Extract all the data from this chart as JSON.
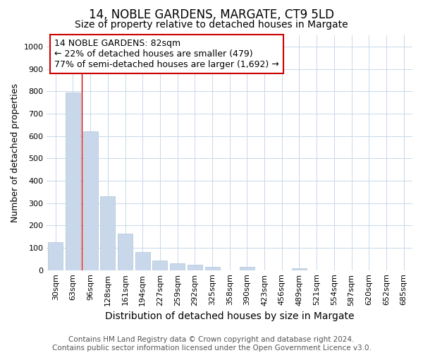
{
  "title": "14, NOBLE GARDENS, MARGATE, CT9 5LD",
  "subtitle": "Size of property relative to detached houses in Margate",
  "xlabel": "Distribution of detached houses by size in Margate",
  "ylabel": "Number of detached properties",
  "categories": [
    "30sqm",
    "63sqm",
    "96sqm",
    "128sqm",
    "161sqm",
    "194sqm",
    "227sqm",
    "259sqm",
    "292sqm",
    "325sqm",
    "358sqm",
    "390sqm",
    "423sqm",
    "456sqm",
    "489sqm",
    "521sqm",
    "554sqm",
    "587sqm",
    "620sqm",
    "652sqm",
    "685sqm"
  ],
  "values": [
    125,
    795,
    620,
    330,
    163,
    80,
    42,
    30,
    25,
    15,
    0,
    15,
    0,
    0,
    7,
    0,
    0,
    0,
    0,
    0,
    0
  ],
  "bar_color": "#c8d8ea",
  "bar_edge_color": "#b0c4d8",
  "grid_color": "#c8d8ea",
  "background_color": "#ffffff",
  "plot_bg_color": "#ffffff",
  "red_line_x": 1.5,
  "annotation_text": "14 NOBLE GARDENS: 82sqm\n← 22% of detached houses are smaller (479)\n77% of semi-detached houses are larger (1,692) →",
  "annotation_box_color": "#ffffff",
  "annotation_border_color": "#cc0000",
  "footnote": "Contains HM Land Registry data © Crown copyright and database right 2024.\nContains public sector information licensed under the Open Government Licence v3.0.",
  "ylim": [
    0,
    1050
  ],
  "yticks": [
    0,
    100,
    200,
    300,
    400,
    500,
    600,
    700,
    800,
    900,
    1000
  ],
  "title_fontsize": 12,
  "subtitle_fontsize": 10,
  "xlabel_fontsize": 10,
  "ylabel_fontsize": 9,
  "tick_fontsize": 8,
  "annotation_fontsize": 9,
  "footnote_fontsize": 7.5
}
